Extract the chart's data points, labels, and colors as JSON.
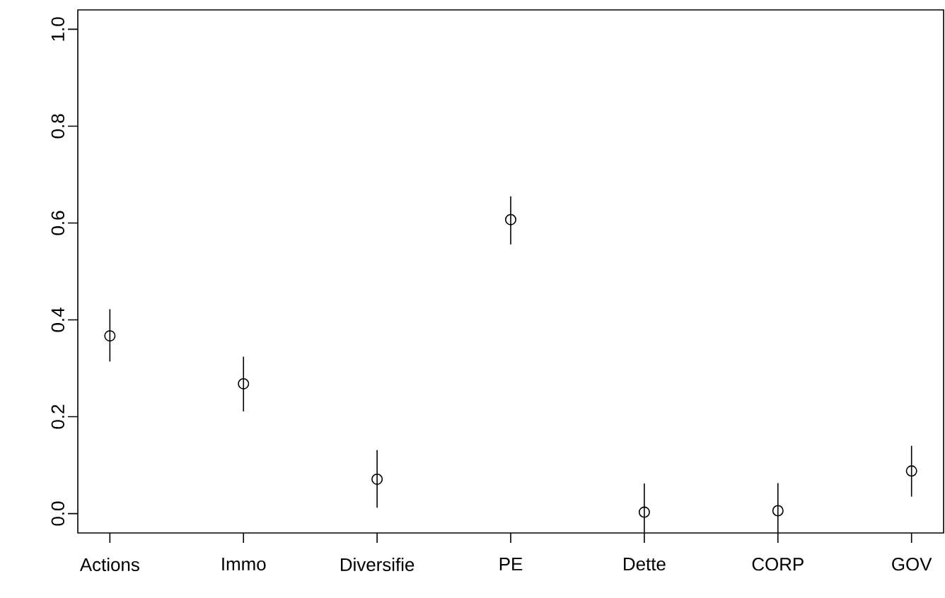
{
  "chart_data": {
    "type": "scatter",
    "categories": [
      "Actions",
      "Immo",
      "Diversifie",
      "PE",
      "Dette",
      "CORP",
      "GOV"
    ],
    "values": [
      0.367,
      0.268,
      0.071,
      0.607,
      0.003,
      0.006,
      0.088
    ],
    "errors": [
      [
        0.314,
        0.422
      ],
      [
        0.211,
        0.324
      ],
      [
        0.012,
        0.131
      ],
      [
        0.556,
        0.655
      ],
      [
        -0.039,
        0.062
      ],
      [
        -0.039,
        0.063
      ],
      [
        0.035,
        0.14
      ]
    ],
    "color": "#000000",
    "marker": "circle",
    "ylim": [
      -0.04,
      1.04
    ],
    "yticks": [
      {
        "value": 0,
        "label": "0.0"
      },
      {
        "value": 0.2,
        "label": "0.2"
      },
      {
        "value": 0.4,
        "label": "0.4"
      },
      {
        "value": 0.6,
        "label": "0.6"
      },
      {
        "value": 0.8,
        "label": "0.8"
      },
      {
        "value": 1,
        "label": "1.0"
      }
    ]
  }
}
